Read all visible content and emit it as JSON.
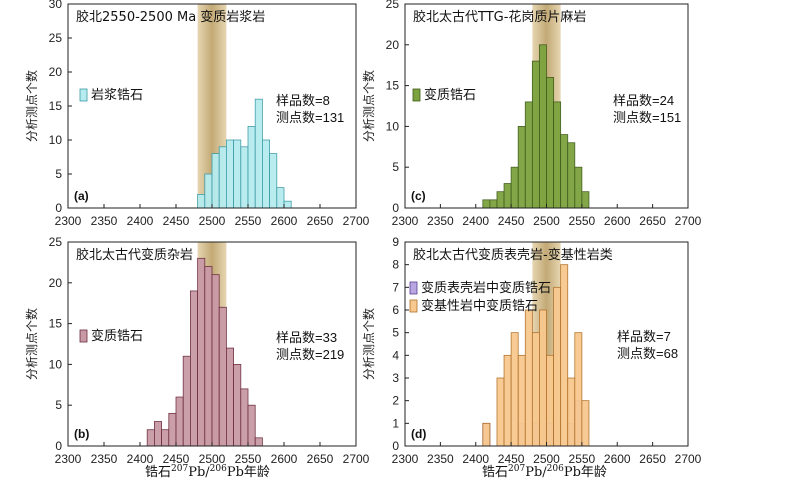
{
  "figure": {
    "x_axis_label": "锆石²⁰⁷Pb/²⁰⁶Pb年龄",
    "x_label_parts": {
      "main1": "锆石",
      "sup1": "207",
      "mid": "Pb/",
      "sup2": "206",
      "main2": "Pb年龄"
    }
  },
  "colors": {
    "band": "#c9a86a",
    "cyan_fill": "#b6ecef",
    "cyan_edge": "#3a9aa5",
    "green_fill": "#7da33f",
    "green_edge": "#3d5a1a",
    "maroon_fill": "#c99aa6",
    "maroon_edge": "#6b2b3d",
    "purple_fill": "#b9a6e0",
    "purple_edge": "#5a3c94",
    "orange_fill": "#f8c98f",
    "orange_edge": "#b07028"
  },
  "chart_data": [
    {
      "type": "bar",
      "panel": "a",
      "panel_label": "(a)",
      "title": "胶北2550-2500 Ma 变质岩浆岩",
      "ylabel": "分析测点个数",
      "xlim": [
        2300,
        2700
      ],
      "xticks": [
        2300,
        2350,
        2400,
        2450,
        2500,
        2550,
        2600,
        2650,
        2700
      ],
      "ylim": [
        0,
        30
      ],
      "yticks": [
        0,
        5,
        10,
        15,
        20,
        25,
        30
      ],
      "bin_width": 10,
      "band": [
        2480,
        2520
      ],
      "series": [
        {
          "name": "岩浆锆石",
          "fill": "cyan",
          "bins": [
            2480,
            2490,
            2500,
            2510,
            2520,
            2530,
            2540,
            2550,
            2560,
            2570,
            2580,
            2590,
            2600
          ],
          "values": [
            2,
            5,
            8,
            9,
            10,
            10,
            9,
            12,
            16,
            10,
            8,
            3,
            1
          ]
        }
      ],
      "stats": [
        "样品数=8",
        "测点数=131"
      ]
    },
    {
      "type": "bar",
      "panel": "c",
      "panel_label": "(c)",
      "title": "胶北太古代TTG-花岗质片麻岩",
      "ylabel": "分析测点个数",
      "xlim": [
        2300,
        2700
      ],
      "xticks": [
        2300,
        2350,
        2400,
        2450,
        2500,
        2550,
        2600,
        2650,
        2700
      ],
      "ylim": [
        0,
        25
      ],
      "yticks": [
        0,
        5,
        10,
        15,
        20,
        25
      ],
      "bin_width": 10,
      "band": [
        2480,
        2520
      ],
      "series": [
        {
          "name": "变质锆石",
          "fill": "green",
          "bins": [
            2410,
            2420,
            2430,
            2440,
            2450,
            2460,
            2470,
            2480,
            2490,
            2500,
            2510,
            2520,
            2530,
            2540,
            2550
          ],
          "values": [
            1,
            1,
            2,
            3,
            5,
            10,
            13,
            18,
            20,
            16,
            13,
            9,
            8,
            5,
            2
          ]
        }
      ],
      "stats": [
        "样品数=24",
        "测点数=151"
      ]
    },
    {
      "type": "bar",
      "panel": "b",
      "panel_label": "(b)",
      "title": "胶北太古代变质杂岩",
      "ylabel": "分析测点个数",
      "xlim": [
        2300,
        2700
      ],
      "xticks": [
        2300,
        2350,
        2400,
        2450,
        2500,
        2550,
        2600,
        2650,
        2700
      ],
      "ylim": [
        0,
        25
      ],
      "yticks": [
        0,
        5,
        10,
        15,
        20,
        25
      ],
      "bin_width": 10,
      "band": [
        2480,
        2520
      ],
      "series": [
        {
          "name": "变质锆石",
          "fill": "maroon",
          "bins": [
            2410,
            2420,
            2430,
            2440,
            2450,
            2460,
            2470,
            2480,
            2490,
            2500,
            2510,
            2520,
            2530,
            2540,
            2550,
            2560
          ],
          "values": [
            2,
            3,
            2,
            4,
            6,
            11,
            19,
            23,
            22,
            21,
            17,
            12,
            10,
            7,
            5,
            1
          ]
        }
      ],
      "stats": [
        "样品数=33",
        "测点数=219"
      ]
    },
    {
      "type": "bar",
      "panel": "d",
      "panel_label": "(d)",
      "title": "胶北太古代变质表壳岩-变基性岩类",
      "ylabel": "分析测点个数",
      "xlim": [
        2300,
        2700
      ],
      "xticks": [
        2300,
        2350,
        2400,
        2450,
        2500,
        2550,
        2600,
        2650,
        2700
      ],
      "ylim": [
        0,
        9
      ],
      "yticks": [
        0,
        1,
        2,
        3,
        4,
        5,
        6,
        7,
        8,
        9
      ],
      "bin_width": 10,
      "band": [
        2480,
        2520
      ],
      "series": [
        {
          "name": "变质表壳岩中变质锆石",
          "fill": "purple",
          "bins": [
            2410,
            2460,
            2480,
            2500,
            2530,
            2540
          ],
          "values": [
            1,
            1,
            1,
            1,
            1,
            2
          ]
        },
        {
          "name": "变基性岩中变质锆石",
          "fill": "orange",
          "bins": [
            2410,
            2420,
            2430,
            2440,
            2450,
            2460,
            2470,
            2480,
            2490,
            2500,
            2510,
            2520,
            2530,
            2540,
            2550
          ],
          "values": [
            1,
            0,
            3,
            4,
            5,
            4,
            6,
            5,
            6,
            4,
            7,
            8,
            3,
            5,
            2
          ]
        }
      ],
      "stats": [
        "样品数=7",
        "测点数=68"
      ]
    }
  ]
}
